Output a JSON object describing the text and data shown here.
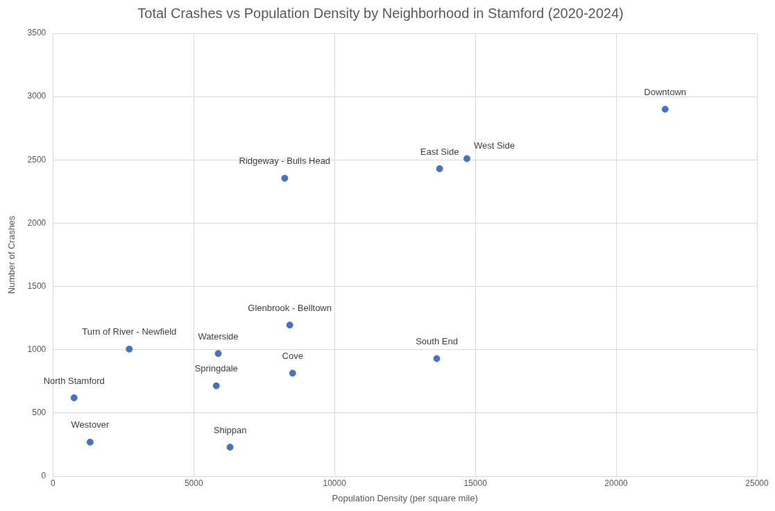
{
  "chart_data": {
    "type": "scatter",
    "title": "Total Crashes vs Population Density by Neighborhood in Stamford (2020-2024)",
    "xlabel": "Population Density (per square mile)",
    "ylabel": "Number of Crashes",
    "x": [
      21740,
      14700,
      13730,
      8230,
      8410,
      2710,
      5870,
      13630,
      8510,
      5800,
      750,
      1320,
      6290
    ],
    "series": [
      {
        "color": "#4472c4",
        "values": [
          2900,
          2510,
          2430,
          2355,
          1195,
          1005,
          970,
          930,
          815,
          715,
          620,
          270,
          230
        ]
      }
    ],
    "annotations": [
      {
        "text": "Downtown",
        "x": 21740,
        "y": 2900
      },
      {
        "text": "West Side",
        "x": 14700,
        "y": 2510
      },
      {
        "text": "East Side",
        "x": 13730,
        "y": 2430
      },
      {
        "text": "Ridgeway - Bulls Head",
        "x": 8230,
        "y": 2355
      },
      {
        "text": "Glenbrook - Belltown",
        "x": 8410,
        "y": 1195
      },
      {
        "text": "Turn of River - Newfield",
        "x": 2710,
        "y": 1005
      },
      {
        "text": "Waterside",
        "x": 5870,
        "y": 970
      },
      {
        "text": "South End",
        "x": 13630,
        "y": 930
      },
      {
        "text": "Cove",
        "x": 8510,
        "y": 815
      },
      {
        "text": "Springdale",
        "x": 5800,
        "y": 715
      },
      {
        "text": "North Stamford",
        "x": 750,
        "y": 620
      },
      {
        "text": "Westover",
        "x": 1320,
        "y": 270
      },
      {
        "text": "Shippan",
        "x": 6290,
        "y": 230
      }
    ],
    "xlim": [
      0,
      25000
    ],
    "xticks": [
      0,
      5000,
      10000,
      15000,
      20000,
      25000
    ],
    "ylim": [
      0,
      3500
    ],
    "yticks": [
      0,
      500,
      1000,
      1500,
      2000,
      2500,
      3000,
      3500
    ],
    "grid": true,
    "marker": "circle",
    "legend": false
  }
}
